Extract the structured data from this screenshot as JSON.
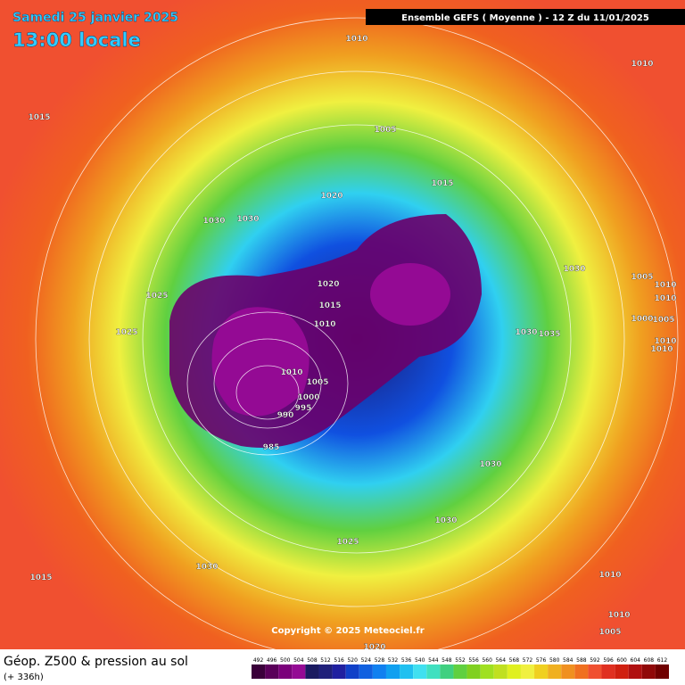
{
  "header": {
    "date": "Samedi 25 janvier 2025",
    "time": "13:00 locale",
    "model": "Ensemble GEFS  ( Moyenne )  -  12 Z du 11/01/2025"
  },
  "map": {
    "copyright": "Copyright © 2025 Meteociel.fr",
    "isobar_labels": [
      "1010",
      "1010",
      "1015",
      "1005",
      "1015",
      "1020",
      "1030",
      "1030",
      "1030",
      "1025",
      "1020",
      "1015",
      "1010",
      "1025",
      "1005",
      "1010",
      "1010",
      "1000",
      "1005",
      "1010",
      "1010",
      "1030",
      "1035",
      "1010",
      "1005",
      "1000",
      "995",
      "990",
      "985",
      "1030",
      "1030",
      "1025",
      "1030",
      "1015",
      "1010",
      "1010",
      "1005",
      "1020"
    ]
  },
  "footer": {
    "title": "Géop. Z500 & pression au sol",
    "lead": "(+ 336h)"
  },
  "scale": {
    "values": [
      492,
      496,
      500,
      504,
      508,
      512,
      516,
      520,
      524,
      528,
      532,
      536,
      540,
      544,
      548,
      552,
      556,
      560,
      564,
      568,
      572,
      576,
      580,
      584,
      588,
      592,
      596,
      600,
      604,
      608,
      612
    ],
    "colors": [
      "#3a003a",
      "#5a005a",
      "#7a007a",
      "#940a94",
      "#1a1a60",
      "#20207a",
      "#2020a0",
      "#1040c8",
      "#1060e0",
      "#1080f0",
      "#10a0f0",
      "#20c0f0",
      "#40e0f0",
      "#40e0c0",
      "#40d080",
      "#60d040",
      "#80d020",
      "#a0e020",
      "#c0e020",
      "#e0f020",
      "#f0f040",
      "#f0d020",
      "#f0b020",
      "#f09020",
      "#f07020",
      "#f05030",
      "#e03020",
      "#d02010",
      "#b01010",
      "#900808",
      "#700000"
    ]
  }
}
